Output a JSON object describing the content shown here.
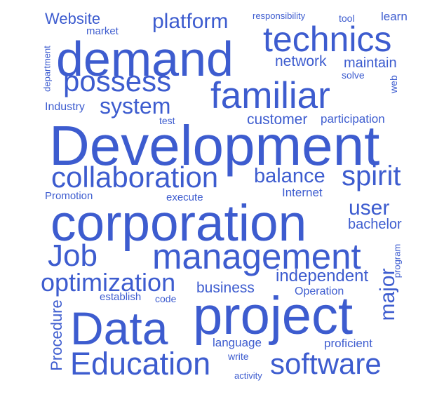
{
  "palette": {
    "word_color": "#3d5ccf",
    "background": "#ffffff"
  },
  "words": [
    {
      "key": "development",
      "text": "Development"
    },
    {
      "key": "corporation",
      "text": "corporation"
    },
    {
      "key": "demand",
      "text": "demand"
    },
    {
      "key": "project",
      "text": "project"
    },
    {
      "key": "data",
      "text": "Data"
    },
    {
      "key": "familiar",
      "text": "familiar"
    },
    {
      "key": "management",
      "text": "management"
    },
    {
      "key": "technics",
      "text": "technics"
    },
    {
      "key": "collaboration",
      "text": "collaboration"
    },
    {
      "key": "education",
      "text": "Education"
    },
    {
      "key": "software",
      "text": "software"
    },
    {
      "key": "possess",
      "text": "possess"
    },
    {
      "key": "optimization",
      "text": "optimization"
    },
    {
      "key": "job",
      "text": "Job"
    },
    {
      "key": "spirit",
      "text": "spirit"
    },
    {
      "key": "system",
      "text": "system"
    },
    {
      "key": "platform",
      "text": "platform"
    },
    {
      "key": "major",
      "text": "major"
    },
    {
      "key": "balance",
      "text": "balance"
    },
    {
      "key": "user",
      "text": "user"
    },
    {
      "key": "procedure",
      "text": "Procedure"
    },
    {
      "key": "independent",
      "text": "independent"
    },
    {
      "key": "business",
      "text": "business"
    },
    {
      "key": "network",
      "text": "network"
    },
    {
      "key": "maintain",
      "text": "maintain"
    },
    {
      "key": "customer",
      "text": "customer"
    },
    {
      "key": "bachelor",
      "text": "bachelor"
    },
    {
      "key": "website",
      "text": "Website"
    },
    {
      "key": "internet",
      "text": "Internet"
    },
    {
      "key": "language",
      "text": "language"
    },
    {
      "key": "proficient",
      "text": "proficient"
    },
    {
      "key": "industry",
      "text": "Industry"
    },
    {
      "key": "participation",
      "text": "participation"
    },
    {
      "key": "operation",
      "text": "Operation"
    },
    {
      "key": "establish",
      "text": "establish"
    },
    {
      "key": "promotion",
      "text": "Promotion"
    },
    {
      "key": "execute",
      "text": "execute"
    },
    {
      "key": "program",
      "text": "program"
    },
    {
      "key": "market",
      "text": "market"
    },
    {
      "key": "department",
      "text": "department"
    },
    {
      "key": "learn",
      "text": "learn"
    },
    {
      "key": "tool",
      "text": "tool"
    },
    {
      "key": "responsibility",
      "text": "responsibility"
    },
    {
      "key": "solve",
      "text": "solve"
    },
    {
      "key": "web",
      "text": "web"
    },
    {
      "key": "test",
      "text": "test"
    },
    {
      "key": "code",
      "text": "code"
    },
    {
      "key": "write",
      "text": "write"
    },
    {
      "key": "activity",
      "text": "activity"
    }
  ]
}
